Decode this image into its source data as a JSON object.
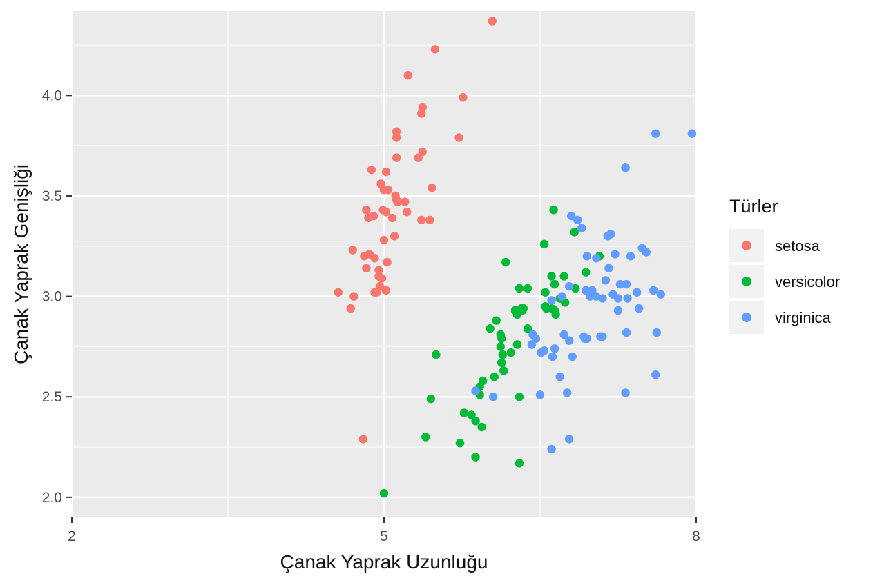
{
  "chart_data": {
    "type": "scatter",
    "xlabel": "Çanak Yaprak Uzunluğu",
    "ylabel": "Çanak Yaprak Genişliği",
    "xlim": [
      2,
      8
    ],
    "ylim": [
      1.9,
      4.42
    ],
    "x_ticks": [
      2,
      5,
      8
    ],
    "x_tick_labels": [
      "2",
      "5",
      "8"
    ],
    "y_ticks": [
      2.0,
      2.5,
      3.0,
      3.5,
      4.0
    ],
    "y_tick_labels": [
      "2.0",
      "2.5",
      "3.0",
      "3.5",
      "4.0"
    ],
    "grid": true,
    "legend": {
      "title": "Türler",
      "placement": "right"
    },
    "series": [
      {
        "name": "setosa",
        "color": "#F8766D",
        "points": [
          [
            6.04,
            4.37
          ],
          [
            5.49,
            4.23
          ],
          [
            5.23,
            4.1
          ],
          [
            5.76,
            3.99
          ],
          [
            5.37,
            3.94
          ],
          [
            5.36,
            3.91
          ],
          [
            5.12,
            3.82
          ],
          [
            5.12,
            3.79
          ],
          [
            5.72,
            3.79
          ],
          [
            5.37,
            3.72
          ],
          [
            5.12,
            3.69
          ],
          [
            5.33,
            3.69
          ],
          [
            4.88,
            3.63
          ],
          [
            5.02,
            3.62
          ],
          [
            4.97,
            3.56
          ],
          [
            5.46,
            3.54
          ],
          [
            5.04,
            3.53
          ],
          [
            5.0,
            3.53
          ],
          [
            5.11,
            3.5
          ],
          [
            5.12,
            3.48
          ],
          [
            5.2,
            3.47
          ],
          [
            5.13,
            3.47
          ],
          [
            4.99,
            3.43
          ],
          [
            4.83,
            3.43
          ],
          [
            5.02,
            3.42
          ],
          [
            5.22,
            3.42
          ],
          [
            4.9,
            3.4
          ],
          [
            5.08,
            3.39
          ],
          [
            4.85,
            3.39
          ],
          [
            5.44,
            3.38
          ],
          [
            5.36,
            3.38
          ],
          [
            5.1,
            3.3
          ],
          [
            5.0,
            3.28
          ],
          [
            4.7,
            3.23
          ],
          [
            4.86,
            3.21
          ],
          [
            4.81,
            3.2
          ],
          [
            4.91,
            3.19
          ],
          [
            5.03,
            3.17
          ],
          [
            4.83,
            3.14
          ],
          [
            4.95,
            3.13
          ],
          [
            4.95,
            3.1
          ],
          [
            4.98,
            3.09
          ],
          [
            4.96,
            3.05
          ],
          [
            5.02,
            3.03
          ],
          [
            4.91,
            3.02
          ],
          [
            4.93,
            3.02
          ],
          [
            4.56,
            3.02
          ],
          [
            4.71,
            3.0
          ],
          [
            4.68,
            2.94
          ],
          [
            4.8,
            2.29
          ]
        ]
      },
      {
        "name": "versicolor",
        "color": "#00BA38",
        "points": [
          [
            6.63,
            3.43
          ],
          [
            6.54,
            3.26
          ],
          [
            6.17,
            3.17
          ],
          [
            7.07,
            3.2
          ],
          [
            6.83,
            3.32
          ],
          [
            6.61,
            3.1
          ],
          [
            6.73,
            3.1
          ],
          [
            6.64,
            3.06
          ],
          [
            6.55,
            3.02
          ],
          [
            6.94,
            3.12
          ],
          [
            6.84,
            3.04
          ],
          [
            6.38,
            3.04
          ],
          [
            6.3,
            3.04
          ],
          [
            6.69,
            2.99
          ],
          [
            6.34,
            2.94
          ],
          [
            6.74,
            2.97
          ],
          [
            6.55,
            2.95
          ],
          [
            6.32,
            2.94
          ],
          [
            6.61,
            2.94
          ],
          [
            6.56,
            2.94
          ],
          [
            6.33,
            2.93
          ],
          [
            6.64,
            2.93
          ],
          [
            6.65,
            2.91
          ],
          [
            6.26,
            2.93
          ],
          [
            6.28,
            2.91
          ],
          [
            6.08,
            2.88
          ],
          [
            6.02,
            2.84
          ],
          [
            6.38,
            2.84
          ],
          [
            6.12,
            2.81
          ],
          [
            6.13,
            2.79
          ],
          [
            6.28,
            2.76
          ],
          [
            6.12,
            2.75
          ],
          [
            6.22,
            2.72
          ],
          [
            6.14,
            2.71
          ],
          [
            5.5,
            2.71
          ],
          [
            6.13,
            2.67
          ],
          [
            6.15,
            2.63
          ],
          [
            6.06,
            2.6
          ],
          [
            5.95,
            2.58
          ],
          [
            5.92,
            2.55
          ],
          [
            5.92,
            2.51
          ],
          [
            6.3,
            2.5
          ],
          [
            5.77,
            2.42
          ],
          [
            5.84,
            2.41
          ],
          [
            5.88,
            2.38
          ],
          [
            5.94,
            2.35
          ],
          [
            5.4,
            2.3
          ],
          [
            5.73,
            2.27
          ],
          [
            5.88,
            2.2
          ],
          [
            6.3,
            2.17
          ],
          [
            5.45,
            2.49
          ],
          [
            5.0,
            2.02
          ]
        ]
      },
      {
        "name": "virginica",
        "color": "#619CFF",
        "points": [
          [
            7.96,
            3.81
          ],
          [
            7.61,
            3.81
          ],
          [
            7.32,
            3.64
          ],
          [
            6.8,
            3.4
          ],
          [
            6.86,
            3.38
          ],
          [
            6.9,
            3.34
          ],
          [
            6.95,
            3.2
          ],
          [
            7.18,
            3.31
          ],
          [
            7.15,
            3.3
          ],
          [
            7.48,
            3.24
          ],
          [
            7.52,
            3.22
          ],
          [
            7.22,
            3.21
          ],
          [
            7.37,
            3.2
          ],
          [
            7.04,
            3.19
          ],
          [
            7.16,
            3.14
          ],
          [
            7.13,
            3.08
          ],
          [
            7.27,
            3.06
          ],
          [
            7.33,
            3.06
          ],
          [
            7.43,
            3.02
          ],
          [
            7.2,
            3.01
          ],
          [
            7.59,
            3.03
          ],
          [
            7.66,
            3.01
          ],
          [
            7.0,
            3.03
          ],
          [
            7.04,
            3.0
          ],
          [
            7.34,
            2.99
          ],
          [
            7.25,
            2.99
          ],
          [
            6.78,
            3.05
          ],
          [
            6.94,
            3.03
          ],
          [
            6.98,
            3.0
          ],
          [
            6.71,
            3.0
          ],
          [
            6.61,
            2.98
          ],
          [
            7.1,
            2.99
          ],
          [
            7.45,
            2.94
          ],
          [
            7.25,
            2.93
          ],
          [
            7.62,
            2.82
          ],
          [
            6.73,
            2.81
          ],
          [
            7.08,
            2.8
          ],
          [
            6.92,
            2.8
          ],
          [
            7.1,
            2.8
          ],
          [
            6.93,
            2.79
          ],
          [
            6.78,
            2.78
          ],
          [
            6.43,
            2.81
          ],
          [
            6.51,
            2.72
          ],
          [
            6.64,
            2.74
          ],
          [
            6.62,
            2.7
          ],
          [
            6.81,
            2.7
          ],
          [
            6.69,
            2.6
          ],
          [
            6.5,
            2.51
          ],
          [
            6.76,
            2.52
          ],
          [
            7.32,
            2.52
          ],
          [
            7.61,
            2.61
          ],
          [
            6.78,
            2.29
          ],
          [
            5.88,
            2.53
          ],
          [
            6.05,
            2.5
          ],
          [
            6.61,
            2.24
          ],
          [
            6.42,
            2.76
          ],
          [
            6.46,
            2.79
          ],
          [
            6.54,
            2.73
          ],
          [
            6.95,
            2.79
          ],
          [
            7.33,
            2.82
          ]
        ]
      }
    ]
  }
}
